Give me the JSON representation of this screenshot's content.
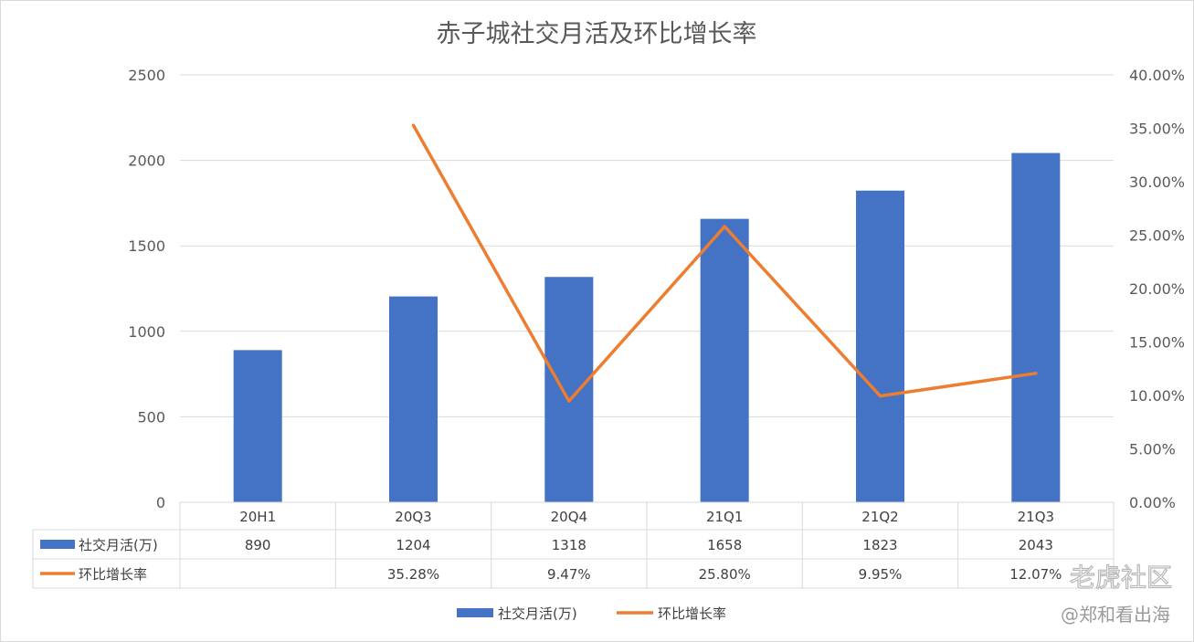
{
  "chart_data": {
    "type": "bar",
    "title": "赤子城社交月活及环比增长率",
    "categories": [
      "20H1",
      "20Q3",
      "20Q4",
      "21Q1",
      "21Q2",
      "21Q3"
    ],
    "series": [
      {
        "name": "社交月活(万)",
        "type": "bar",
        "axis": "left",
        "color": "#4472c4",
        "values": [
          890,
          1204,
          1318,
          1658,
          1823,
          2043
        ],
        "labels": [
          "890",
          "1204",
          "1318",
          "1658",
          "1823",
          "2043"
        ]
      },
      {
        "name": "环比增长率",
        "type": "line",
        "axis": "right",
        "color": "#ed7d31",
        "values": [
          null,
          35.28,
          9.47,
          25.8,
          9.95,
          12.07
        ],
        "labels": [
          "",
          "35.28%",
          "9.47%",
          "25.80%",
          "9.95%",
          "12.07%"
        ]
      }
    ],
    "y_left": {
      "min": 0,
      "max": 2500,
      "ticks": [
        "0",
        "500",
        "1000",
        "1500",
        "2000",
        "2500"
      ]
    },
    "y_right": {
      "min": 0,
      "max": 40,
      "ticks": [
        "0.00%",
        "5.00%",
        "10.00%",
        "15.00%",
        "20.00%",
        "25.00%",
        "30.00%",
        "35.00%",
        "40.00%"
      ]
    },
    "grid": true,
    "legend": "bottom",
    "data_table": true
  },
  "watermark": {
    "brand": "老虎社区",
    "handle": "@郑和看出海"
  }
}
